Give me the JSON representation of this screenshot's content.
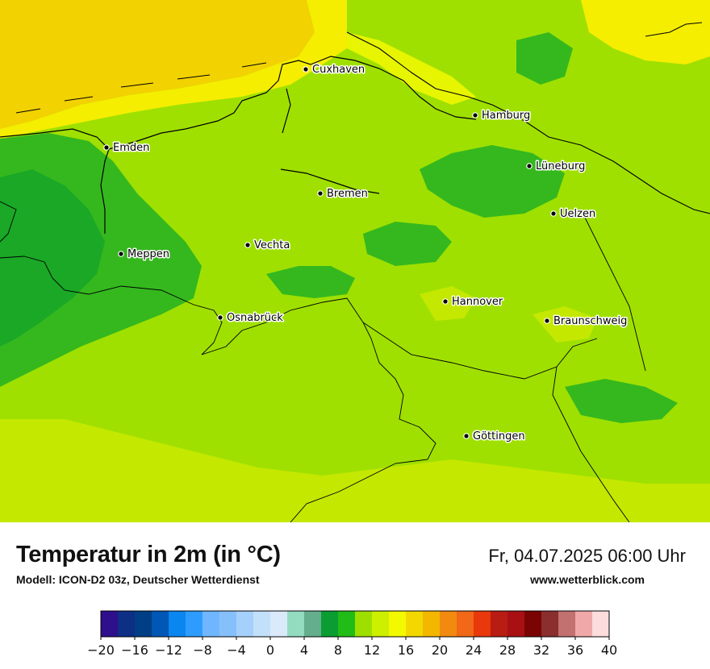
{
  "map": {
    "cities": [
      {
        "name": "Cuxhaven"
      },
      {
        "name": "Hamburg"
      },
      {
        "name": "Emden"
      },
      {
        "name": "Lüneburg"
      },
      {
        "name": "Bremen"
      },
      {
        "name": "Uelzen"
      },
      {
        "name": "Vechta"
      },
      {
        "name": "Meppen"
      },
      {
        "name": "Hannover"
      },
      {
        "name": "Osnabrück"
      },
      {
        "name": "Braunschweig"
      },
      {
        "name": "Göttingen"
      }
    ],
    "colors": {
      "sea": "#f2d200",
      "coast": "#f5ee00",
      "land_main": "#9fe000",
      "land_warm": "#c4e800",
      "land_cool": "#35b81e",
      "land_cooler": "#1aa826"
    }
  },
  "footer": {
    "title": "Temperatur in 2m (in °C)",
    "subtitle": "Modell: ICON-D2 03z, Deutscher Wetterdienst",
    "datetime": "Fr, 04.07.2025 06:00 Uhr",
    "source": "www.wetterblick.com"
  },
  "legend": {
    "min": -20,
    "max": 40,
    "ticks": [
      "−20",
      "−16",
      "−12",
      "−8",
      "−4",
      "0",
      "4",
      "8",
      "12",
      "16",
      "20",
      "24",
      "28",
      "32",
      "36",
      "40"
    ],
    "colors": [
      "#2e0f8c",
      "#0d2f86",
      "#003f86",
      "#0057b5",
      "#0b85f0",
      "#2e9cff",
      "#70b6ff",
      "#86c0fb",
      "#a6d0fc",
      "#c3e0fb",
      "#daeafb",
      "#93dcc0",
      "#64ae8e",
      "#0a9e32",
      "#22bc16",
      "#9edf00",
      "#cdef00",
      "#f3f900",
      "#f2d800",
      "#f3b700",
      "#f28a10",
      "#f06818",
      "#e8380c",
      "#b81c12",
      "#a81014",
      "#7a0404",
      "#8a2e2e",
      "#c27070",
      "#f0a8a8",
      "#fcdcdc"
    ]
  }
}
